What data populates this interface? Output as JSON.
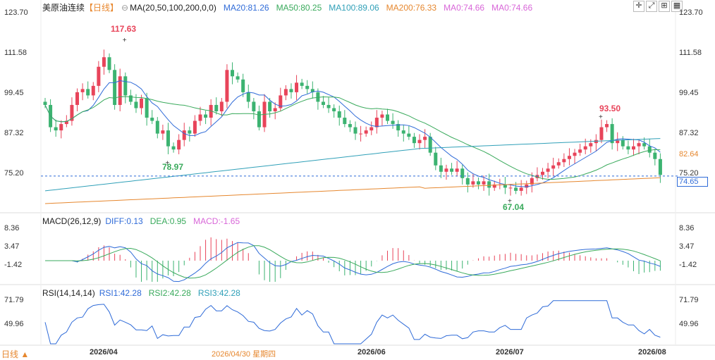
{
  "header": {
    "instrument": "美原油连续",
    "period": "【日线】",
    "ma_label": "MA(20,50,100,200,0,0)",
    "ma20": "MA20:81.26",
    "ma50": "MA50:80.25",
    "ma100": "MA100:89.06",
    "ma200": "MA200:76.33",
    "ma0a": "MA0:74.66",
    "ma0b": "MA0:74.66"
  },
  "macd_header": {
    "label": "MACD(26,12,9)",
    "diff": "DIFF:0.13",
    "dea": "DEA:0.95",
    "macd": "MACD:-1.65"
  },
  "rsi_header": {
    "label": "RSI(14,14,14)",
    "rsi1": "RSI1:42.28",
    "rsi2": "RSI2:42.28",
    "rsi3": "RSI3:42.28"
  },
  "price_axis": {
    "left": [
      "123.70",
      "111.58",
      "99.45",
      "87.32",
      "75.20"
    ],
    "right": [
      "123.70",
      "111.58",
      "99.45",
      "87.32",
      "75.20"
    ],
    "tag_ma20": "82.64",
    "tag_last": "74.65"
  },
  "macd_axis": [
    "8.36",
    "3.47",
    "-1.42"
  ],
  "rsi_axis": [
    "71.79",
    "49.96"
  ],
  "x_axis": {
    "labels": [
      "2026/04",
      "2026/06",
      "2026/07",
      "2026/08"
    ],
    "crosshair_date": "2026/04/30 星期四",
    "period_button": "日线 ▲"
  },
  "annotations": {
    "high1": "117.63",
    "low1": "78.97",
    "high2": "93.50",
    "low2": "67.04"
  },
  "colors": {
    "up": "#e8445a",
    "down": "#3cb371",
    "ma20": "#2f6bd8",
    "ma50": "#3aaa5c",
    "ma100": "#30a0b8",
    "ma200": "#e6872e",
    "ma0": "#d866d8"
  },
  "chart_data": {
    "type": "candlestick",
    "title": "美原油连续",
    "ylim": [
      64,
      126
    ],
    "ohlc_close_series": [
      97,
      90,
      89,
      91,
      92,
      97,
      101,
      102,
      100,
      103,
      109,
      112,
      108,
      97,
      106,
      100,
      98,
      96,
      99,
      93,
      92,
      88,
      89,
      84,
      83,
      86,
      89,
      88,
      92,
      94,
      93,
      97,
      95,
      98,
      108,
      106,
      105,
      101,
      98,
      95,
      90,
      98,
      95,
      96,
      100,
      102,
      101,
      104,
      103,
      102,
      101,
      98,
      97,
      96,
      95,
      93,
      91,
      90,
      88,
      88,
      89,
      90,
      93,
      94,
      92,
      91,
      89,
      88,
      87,
      85,
      86,
      87,
      82,
      78,
      76,
      77,
      76,
      77,
      74,
      72,
      73,
      72,
      73,
      71,
      72,
      72,
      71,
      71,
      70,
      71,
      72,
      74,
      75,
      76,
      77,
      78,
      79,
      80,
      81,
      82,
      83,
      84,
      85,
      86,
      90,
      91,
      85,
      86,
      84,
      83,
      84,
      85,
      84,
      82,
      80,
      75
    ],
    "annotated_values": {
      "high1": 117.63,
      "low1": 78.97,
      "high2": 93.5,
      "low2": 67.04,
      "last": 74.65
    }
  }
}
